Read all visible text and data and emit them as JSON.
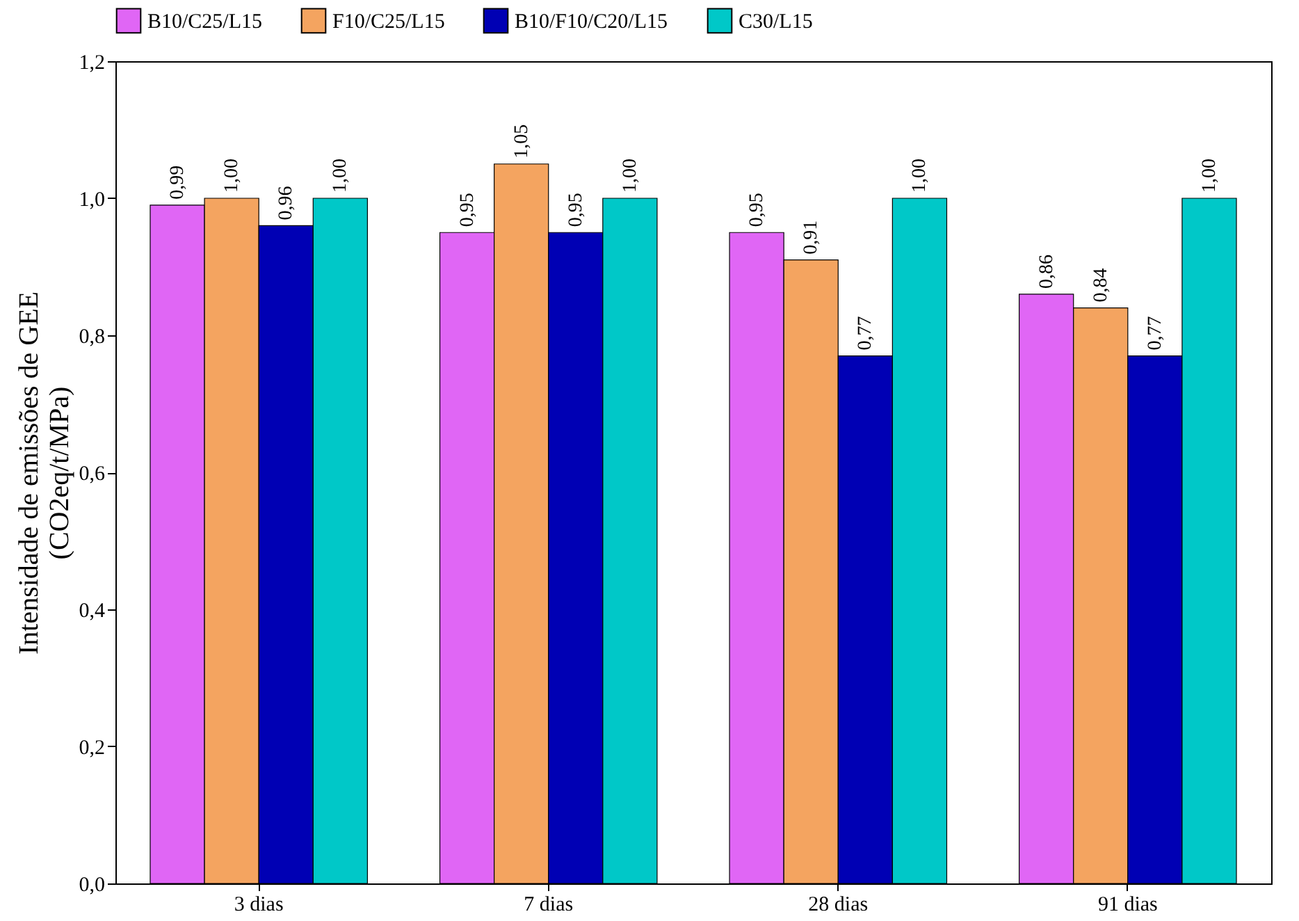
{
  "chart_data": {
    "type": "bar",
    "ylabel": "Intensidade de emissões de GEE\n(CO2eq/t/MPa)",
    "categories": [
      "3 dias",
      "7 dias",
      "28 dias",
      "91 dias"
    ],
    "series": [
      {
        "name": "B10/C25/L15",
        "color": "#e066f5",
        "values": [
          0.99,
          0.95,
          0.95,
          0.86
        ],
        "value_labels": [
          "0,99",
          "0,95",
          "0,95",
          "0,86"
        ]
      },
      {
        "name": "F10/C25/L15",
        "color": "#f4a460",
        "values": [
          1.0,
          1.05,
          0.91,
          0.84
        ],
        "value_labels": [
          "1,00",
          "1,05",
          "0,91",
          "0,84"
        ]
      },
      {
        "name": "B10/F10/C20/L15",
        "color": "#0000b4",
        "values": [
          0.96,
          0.95,
          0.77,
          0.77
        ],
        "value_labels": [
          "0,96",
          "0,95",
          "0,77",
          "0,77"
        ]
      },
      {
        "name": "C30/L15",
        "color": "#00c8c8",
        "values": [
          1.0,
          1.0,
          1.0,
          1.0
        ],
        "value_labels": [
          "1,00",
          "1,00",
          "1,00",
          "1,00"
        ]
      }
    ],
    "ylim": [
      0,
      1.2
    ],
    "yticks": [
      {
        "value": 0,
        "label": "0,0"
      },
      {
        "value": 0.2,
        "label": "0,2"
      },
      {
        "value": 0.4,
        "label": "0,4"
      },
      {
        "value": 0.6,
        "label": "0,6"
      },
      {
        "value": 0.8,
        "label": "0,8"
      },
      {
        "value": 1.0,
        "label": "1,0"
      },
      {
        "value": 1.2,
        "label": "1,2"
      }
    ],
    "legend": "top",
    "grid": false
  }
}
